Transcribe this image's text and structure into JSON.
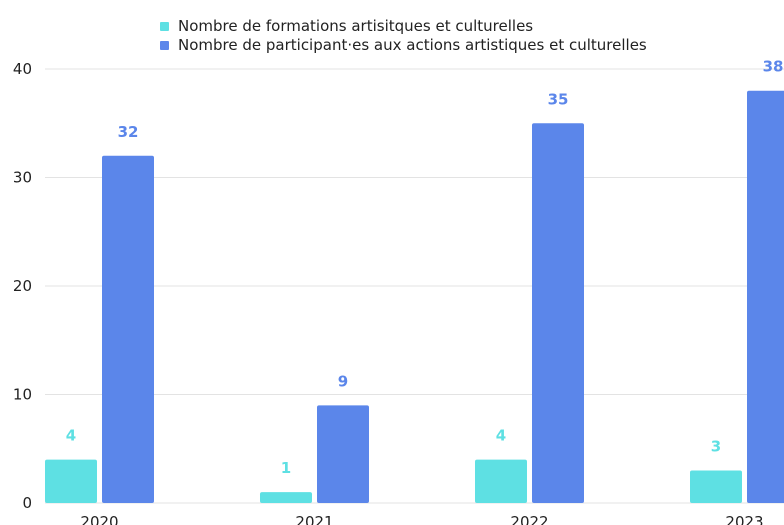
{
  "chart_data": {
    "type": "bar",
    "title": "",
    "xlabel": "",
    "ylabel": "",
    "categories": [
      "2020",
      "2021",
      "2022",
      "2023"
    ],
    "series": [
      {
        "name": "Nombre de formations artisitques et culturelles",
        "color": "#5ee0e3",
        "values": [
          4,
          1,
          4,
          3
        ]
      },
      {
        "name": "Nombre de participant·es aux actions artistiques et culturelles",
        "color": "#5b86ea",
        "values": [
          32,
          9,
          35,
          38
        ]
      }
    ],
    "ylim": [
      0,
      40
    ],
    "yticks": [
      0,
      10,
      20,
      30,
      40
    ],
    "grid": true,
    "data_labels": true,
    "legend_position": "top"
  },
  "colors": {
    "series_1": "#5ee0e3",
    "series_2": "#5b86ea",
    "grid": "#e3e3e3",
    "axis_text": "#222222"
  }
}
